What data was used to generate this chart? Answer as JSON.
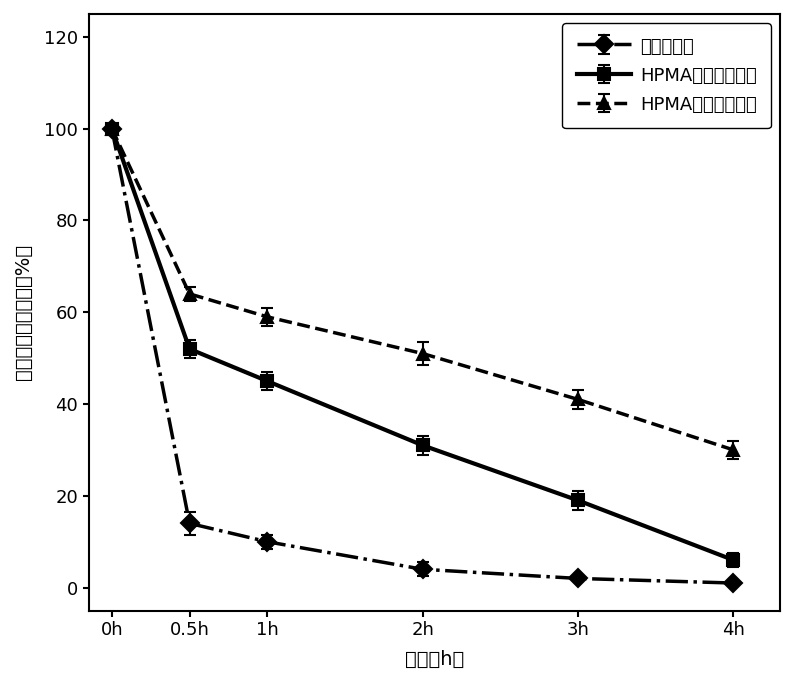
{
  "x_ticks": [
    0,
    0.5,
    1,
    2,
    3,
    4
  ],
  "x_tick_labels": [
    "0h",
    "0.5h",
    "1h",
    "2h",
    "3h",
    "4h"
  ],
  "xlabel": "时间（h）",
  "ylabel": "胰岛素剩余百分数（%）",
  "ylim": [
    -5,
    125
  ],
  "yticks": [
    0,
    20,
    40,
    60,
    80,
    100,
    120
  ],
  "series": [
    {
      "label": "胰岛素原药",
      "x": [
        0,
        0.5,
        1,
        2,
        3,
        4
      ],
      "y": [
        100,
        14,
        10,
        4,
        2,
        1
      ],
      "yerr": [
        0,
        2.5,
        1.5,
        1.5,
        0.5,
        0.5
      ],
      "color": "#000000",
      "linestyle": "-.",
      "linewidth": 2.5,
      "marker": "D",
      "markersize": 9,
      "markerfacecolor": "#000000",
      "zorder": 3
    },
    {
      "label": "HPMA聚合物包裹前",
      "x": [
        0,
        0.5,
        1,
        2,
        3,
        4
      ],
      "y": [
        100,
        52,
        45,
        31,
        19,
        6
      ],
      "yerr": [
        0,
        2,
        2,
        2,
        2,
        1.5
      ],
      "color": "#000000",
      "linestyle": "-",
      "linewidth": 3.0,
      "marker": "s",
      "markersize": 9,
      "markerfacecolor": "#000000",
      "zorder": 4
    },
    {
      "label": "HPMA聚合物包裹后",
      "x": [
        0,
        0.5,
        1,
        2,
        3,
        4
      ],
      "y": [
        100,
        64,
        59,
        51,
        41,
        30
      ],
      "yerr": [
        0,
        1.5,
        2,
        2.5,
        2,
        2
      ],
      "color": "#000000",
      "linestyle": "--",
      "linewidth": 2.5,
      "marker": "^",
      "markersize": 9,
      "markerfacecolor": "#000000",
      "zorder": 2
    }
  ],
  "legend_fontsize": 13,
  "axis_fontsize": 14,
  "tick_fontsize": 13,
  "figure_bgcolor": "#ffffff",
  "axes_bgcolor": "#ffffff"
}
